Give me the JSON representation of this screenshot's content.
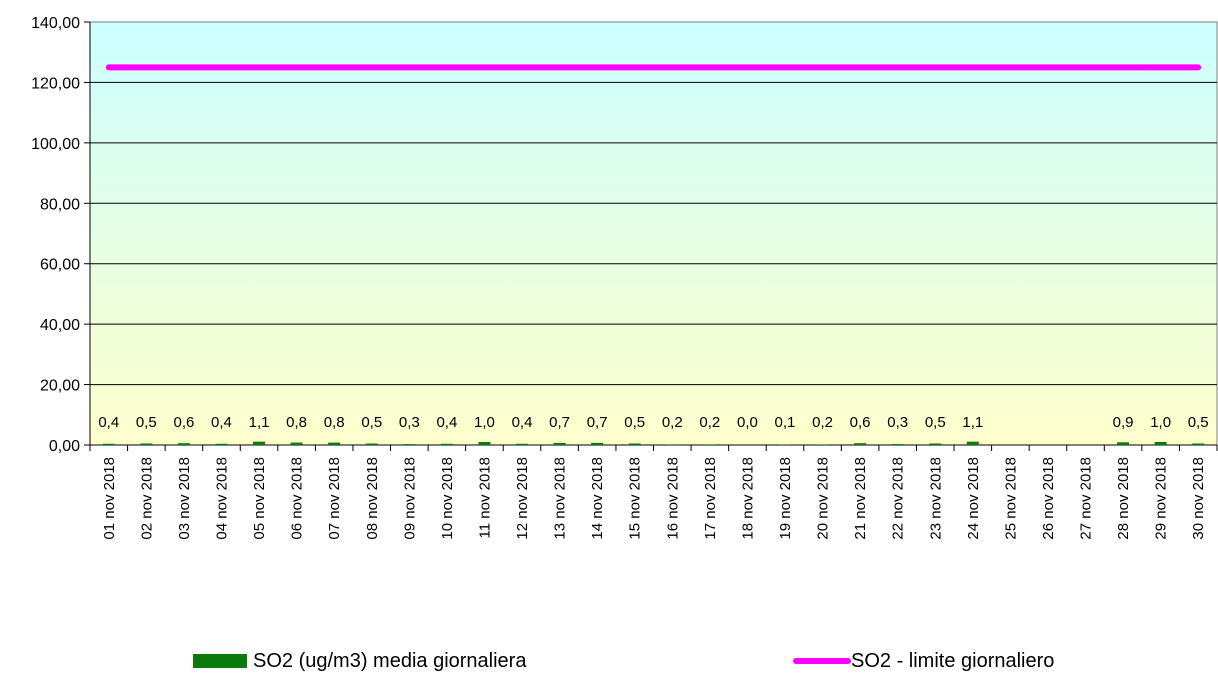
{
  "chart_data": {
    "type": "bar",
    "categories": [
      "01 nov 2018",
      "02 nov 2018",
      "03 nov 2018",
      "04 nov 2018",
      "05 nov 2018",
      "06 nov 2018",
      "07 nov 2018",
      "08 nov 2018",
      "09 nov 2018",
      "10 nov 2018",
      "11 nov 2018",
      "12 nov 2018",
      "13 nov 2018",
      "14 nov 2018",
      "15 nov 2018",
      "16 nov 2018",
      "17 nov 2018",
      "18 nov 2018",
      "19 nov 2018",
      "20 nov 2018",
      "21 nov 2018",
      "22 nov 2018",
      "23 nov 2018",
      "24 nov 2018",
      "25 nov 2018",
      "26 nov 2018",
      "27 nov 2018",
      "28 nov 2018",
      "29 nov 2018",
      "30 nov 2018"
    ],
    "series": [
      {
        "name": "SO2 (ug/m3) media giornaliera",
        "type": "bar",
        "color": "#0a7a0a",
        "values": [
          0.4,
          0.5,
          0.6,
          0.4,
          1.1,
          0.8,
          0.8,
          0.5,
          0.3,
          0.4,
          1.0,
          0.4,
          0.7,
          0.7,
          0.5,
          0.2,
          0.2,
          0.0,
          0.1,
          0.2,
          0.6,
          0.3,
          0.5,
          1.1,
          null,
          null,
          null,
          0.9,
          1.0,
          0.5
        ],
        "labels": [
          "0,4",
          "0,5",
          "0,6",
          "0,4",
          "1,1",
          "0,8",
          "0,8",
          "0,5",
          "0,3",
          "0,4",
          "1,0",
          "0,4",
          "0,7",
          "0,7",
          "0,5",
          "0,2",
          "0,2",
          "0,0",
          "0,1",
          "0,2",
          "0,6",
          "0,3",
          "0,5",
          "1,1",
          "",
          "",
          "",
          "0,9",
          "1,0",
          "0,5"
        ]
      },
      {
        "name": "SO2 - limite giornaliero",
        "type": "line",
        "color": "#ff00ff",
        "values": [
          125,
          125,
          125,
          125,
          125,
          125,
          125,
          125,
          125,
          125,
          125,
          125,
          125,
          125,
          125,
          125,
          125,
          125,
          125,
          125,
          125,
          125,
          125,
          125,
          125,
          125,
          125,
          125,
          125,
          125
        ]
      }
    ],
    "ylim": [
      0,
      140
    ],
    "yticks": [
      0,
      20,
      40,
      60,
      80,
      100,
      120,
      140
    ],
    "ytick_labels": [
      "0,00",
      "20,00",
      "40,00",
      "60,00",
      "80,00",
      "100,00",
      "120,00",
      "140,00"
    ],
    "grid": true,
    "background_gradient": [
      "#ccffff",
      "#ffffcc"
    ],
    "legend_position": "bottom"
  }
}
